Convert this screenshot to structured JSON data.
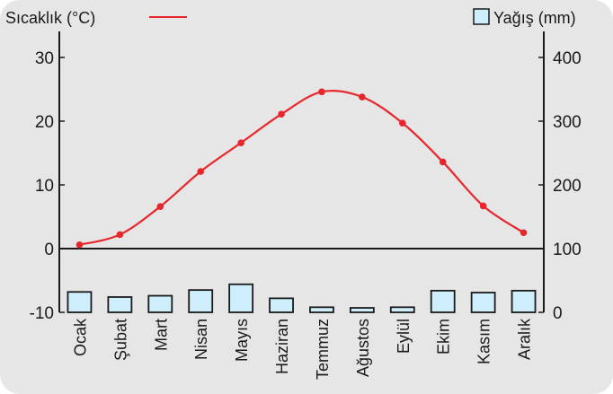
{
  "chart_data": {
    "type": "bar+line",
    "categories": [
      "Ocak",
      "Şubat",
      "Mart",
      "Nisan",
      "Mayıs",
      "Haziran",
      "Temmuz",
      "Ağustos",
      "Eylül",
      "Ekim",
      "Kasım",
      "Aralık"
    ],
    "series": [
      {
        "name": "Sıcaklık (°C)",
        "type": "line",
        "axis": "left",
        "color": "#e8262b",
        "values": [
          0.6,
          2.2,
          6.6,
          12.1,
          16.6,
          21.1,
          24.6,
          23.8,
          19.7,
          13.6,
          6.7,
          2.5
        ]
      },
      {
        "name": "Yağış (mm)",
        "type": "bar",
        "axis": "right",
        "color": "#cdeefa",
        "values": [
          32,
          24,
          26,
          35,
          44,
          22,
          8,
          7,
          8,
          34,
          31,
          34
        ]
      }
    ],
    "y_left": {
      "min": -10,
      "max": 30,
      "ticks": [
        -10,
        0,
        10,
        20,
        30
      ]
    },
    "y_right": {
      "min": 0,
      "max": 400,
      "ticks": [
        0,
        100,
        200,
        300,
        400
      ]
    },
    "legend": [
      {
        "label": "Sıcaklık (°C)",
        "kind": "line",
        "placement": "top-left"
      },
      {
        "label": "Yağış (mm)",
        "kind": "bar",
        "placement": "top-right"
      }
    ],
    "background": "#e6e6e6",
    "grid": false
  }
}
